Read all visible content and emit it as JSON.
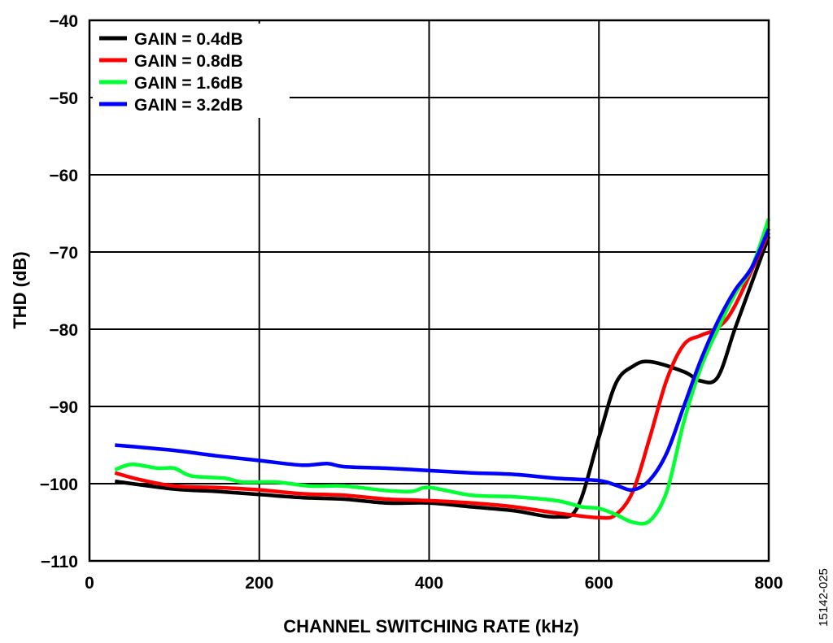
{
  "chart_data": {
    "type": "line",
    "xlabel": "CHANNEL SWITCHING RATE (kHz)",
    "ylabel": "THD (dB)",
    "xlim": [
      0,
      800
    ],
    "ylim": [
      -110,
      -40
    ],
    "xticks": [
      "0",
      "200",
      "400",
      "600",
      "800"
    ],
    "yticks": [
      "−40",
      "−50",
      "−60",
      "−70",
      "−80",
      "−90",
      "−100",
      "−110"
    ],
    "grid": true,
    "legend_position": "top-left",
    "figure_id": "15142-025",
    "series": [
      {
        "name": "GAIN = 0.4dB",
        "color": "#000000",
        "x": [
          30,
          100,
          150,
          200,
          250,
          300,
          350,
          400,
          450,
          500,
          550,
          575,
          600,
          620,
          640,
          660,
          700,
          720,
          740,
          760,
          780,
          800
        ],
        "y": [
          -99.7,
          -100.7,
          -101,
          -101.4,
          -101.8,
          -102,
          -102.5,
          -102.5,
          -103,
          -103.5,
          -104.3,
          -103,
          -94,
          -87,
          -84.8,
          -84.2,
          -85.5,
          -86.7,
          -86.2,
          -80,
          -74,
          -68
        ]
      },
      {
        "name": "GAIN = 0.8dB",
        "color": "#ff0000",
        "x": [
          30,
          60,
          100,
          150,
          200,
          250,
          300,
          350,
          400,
          450,
          500,
          550,
          600,
          620,
          640,
          660,
          680,
          700,
          720,
          740,
          760,
          800
        ],
        "y": [
          -98.6,
          -99.5,
          -100.3,
          -100.5,
          -100.8,
          -101.3,
          -101.5,
          -102,
          -102.2,
          -102.5,
          -103,
          -103.8,
          -104.4,
          -104,
          -101,
          -94,
          -86.5,
          -82,
          -80.8,
          -79.8,
          -77,
          -67.5
        ]
      },
      {
        "name": "GAIN = 1.6dB",
        "color": "#00ff33",
        "x": [
          30,
          50,
          80,
          100,
          120,
          160,
          180,
          220,
          260,
          300,
          350,
          380,
          400,
          450,
          500,
          550,
          580,
          600,
          620,
          640,
          660,
          680,
          700,
          720,
          740,
          760,
          780,
          800
        ],
        "y": [
          -98.2,
          -97.5,
          -98,
          -98,
          -99,
          -99.3,
          -99.8,
          -99.8,
          -100.3,
          -100.3,
          -100.9,
          -101,
          -100.5,
          -101.5,
          -101.7,
          -102.2,
          -103,
          -103.2,
          -104,
          -105,
          -104.8,
          -101,
          -92,
          -85,
          -80,
          -75.5,
          -72,
          -65.7
        ]
      },
      {
        "name": "GAIN = 3.2dB",
        "color": "#0000ff",
        "x": [
          30,
          100,
          150,
          200,
          250,
          280,
          300,
          350,
          400,
          450,
          500,
          550,
          600,
          620,
          640,
          660,
          680,
          700,
          720,
          740,
          760,
          780,
          800
        ],
        "y": [
          -95,
          -95.7,
          -96.4,
          -97,
          -97.6,
          -97.4,
          -97.8,
          -98,
          -98.3,
          -98.6,
          -98.8,
          -99.3,
          -99.6,
          -100.2,
          -100.8,
          -99.5,
          -96,
          -90,
          -84,
          -79,
          -75,
          -72,
          -67
        ]
      }
    ]
  }
}
